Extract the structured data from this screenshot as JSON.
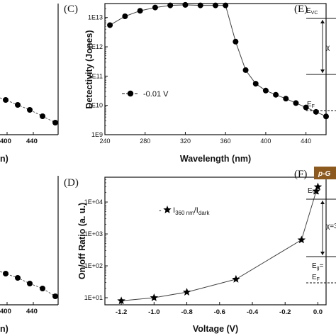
{
  "chart_data": [
    {
      "panel": "C",
      "type": "line",
      "xlabel": "Wavelength (nm)",
      "ylabel": "Detectivity (Jones)",
      "xlim": [
        240,
        460
      ],
      "ylim": [
        1000000000.0,
        30000000000000.0
      ],
      "y_scale": "log",
      "x_ticks": [
        "240",
        "280",
        "320",
        "360",
        "400",
        "440"
      ],
      "y_ticks": [
        "1E9",
        "1E10",
        "1E11",
        "1E12",
        "1E13"
      ],
      "series": [
        {
          "name": "-0.01 V",
          "x": [
            245,
            260,
            275,
            290,
            305,
            320,
            335,
            350,
            360,
            370,
            380,
            390,
            400,
            410,
            420,
            430,
            440,
            450,
            460
          ],
          "y": [
            5500000000000.0,
            11000000000000.0,
            17000000000000.0,
            22000000000000.0,
            26000000000000.0,
            27000000000000.0,
            26000000000000.0,
            26000000000000.0,
            26000000000000.0,
            1500000000000.0,
            160000000000.0,
            55000000000.0,
            32000000000.0,
            23000000000.0,
            17000000000.0,
            12000000000.0,
            8500000000.0,
            6000000000.0,
            4200000000.0
          ]
        }
      ],
      "legend_text": "-0.01 V"
    },
    {
      "panel": "D",
      "type": "line",
      "xlabel": "Voltage (V)",
      "ylabel": "On/off Ratio (a. u.)",
      "xlim": [
        -1.3,
        0.05
      ],
      "ylim": [
        6,
        60000.0
      ],
      "y_scale": "log",
      "x_ticks": [
        "-1.2",
        "-1.0",
        "-0.8",
        "-0.6",
        "-0.4",
        "-0.2",
        "0.0"
      ],
      "y_ticks": [
        "1E+01",
        "1E+02",
        "1E+03",
        "1E+04"
      ],
      "series": [
        {
          "name": "I360 nm/Idark",
          "x": [
            -1.2,
            -1.0,
            -0.8,
            -0.5,
            -0.1,
            -0.01,
            0.0
          ],
          "y": [
            8,
            10,
            15,
            38,
            650,
            22000,
            30000
          ]
        }
      ],
      "legend_parts": {
        "dash": "-",
        "main1": "I",
        "sub1": "360 nm",
        "slash": "/I",
        "sub2": "dark"
      }
    }
  ],
  "panels": {
    "C": "(C)",
    "D": "(D)",
    "E": "(E)",
    "F": "(F)"
  },
  "left_partial": {
    "top_ticks": [
      "400",
      "440"
    ],
    "top_unit": "n)",
    "bottom_ticks": [
      "400",
      "440"
    ],
    "bottom_unit": "n)"
  },
  "band_diagram": {
    "top": {
      "evc": "E",
      "evc_sub": "VC",
      "chi": "χ",
      "ef": "E",
      "ef_sub": "F"
    },
    "bottom": {
      "tag": "p-G",
      "evc": "E",
      "evc_sub": "VC",
      "chi": "χ=3",
      "eg": "E",
      "eg_sub": "g",
      "eg_eq": "=",
      "ef": "E",
      "ef_sub": "F"
    }
  },
  "colors": {
    "brown": "#8c5a1e",
    "marker": "#000000"
  }
}
